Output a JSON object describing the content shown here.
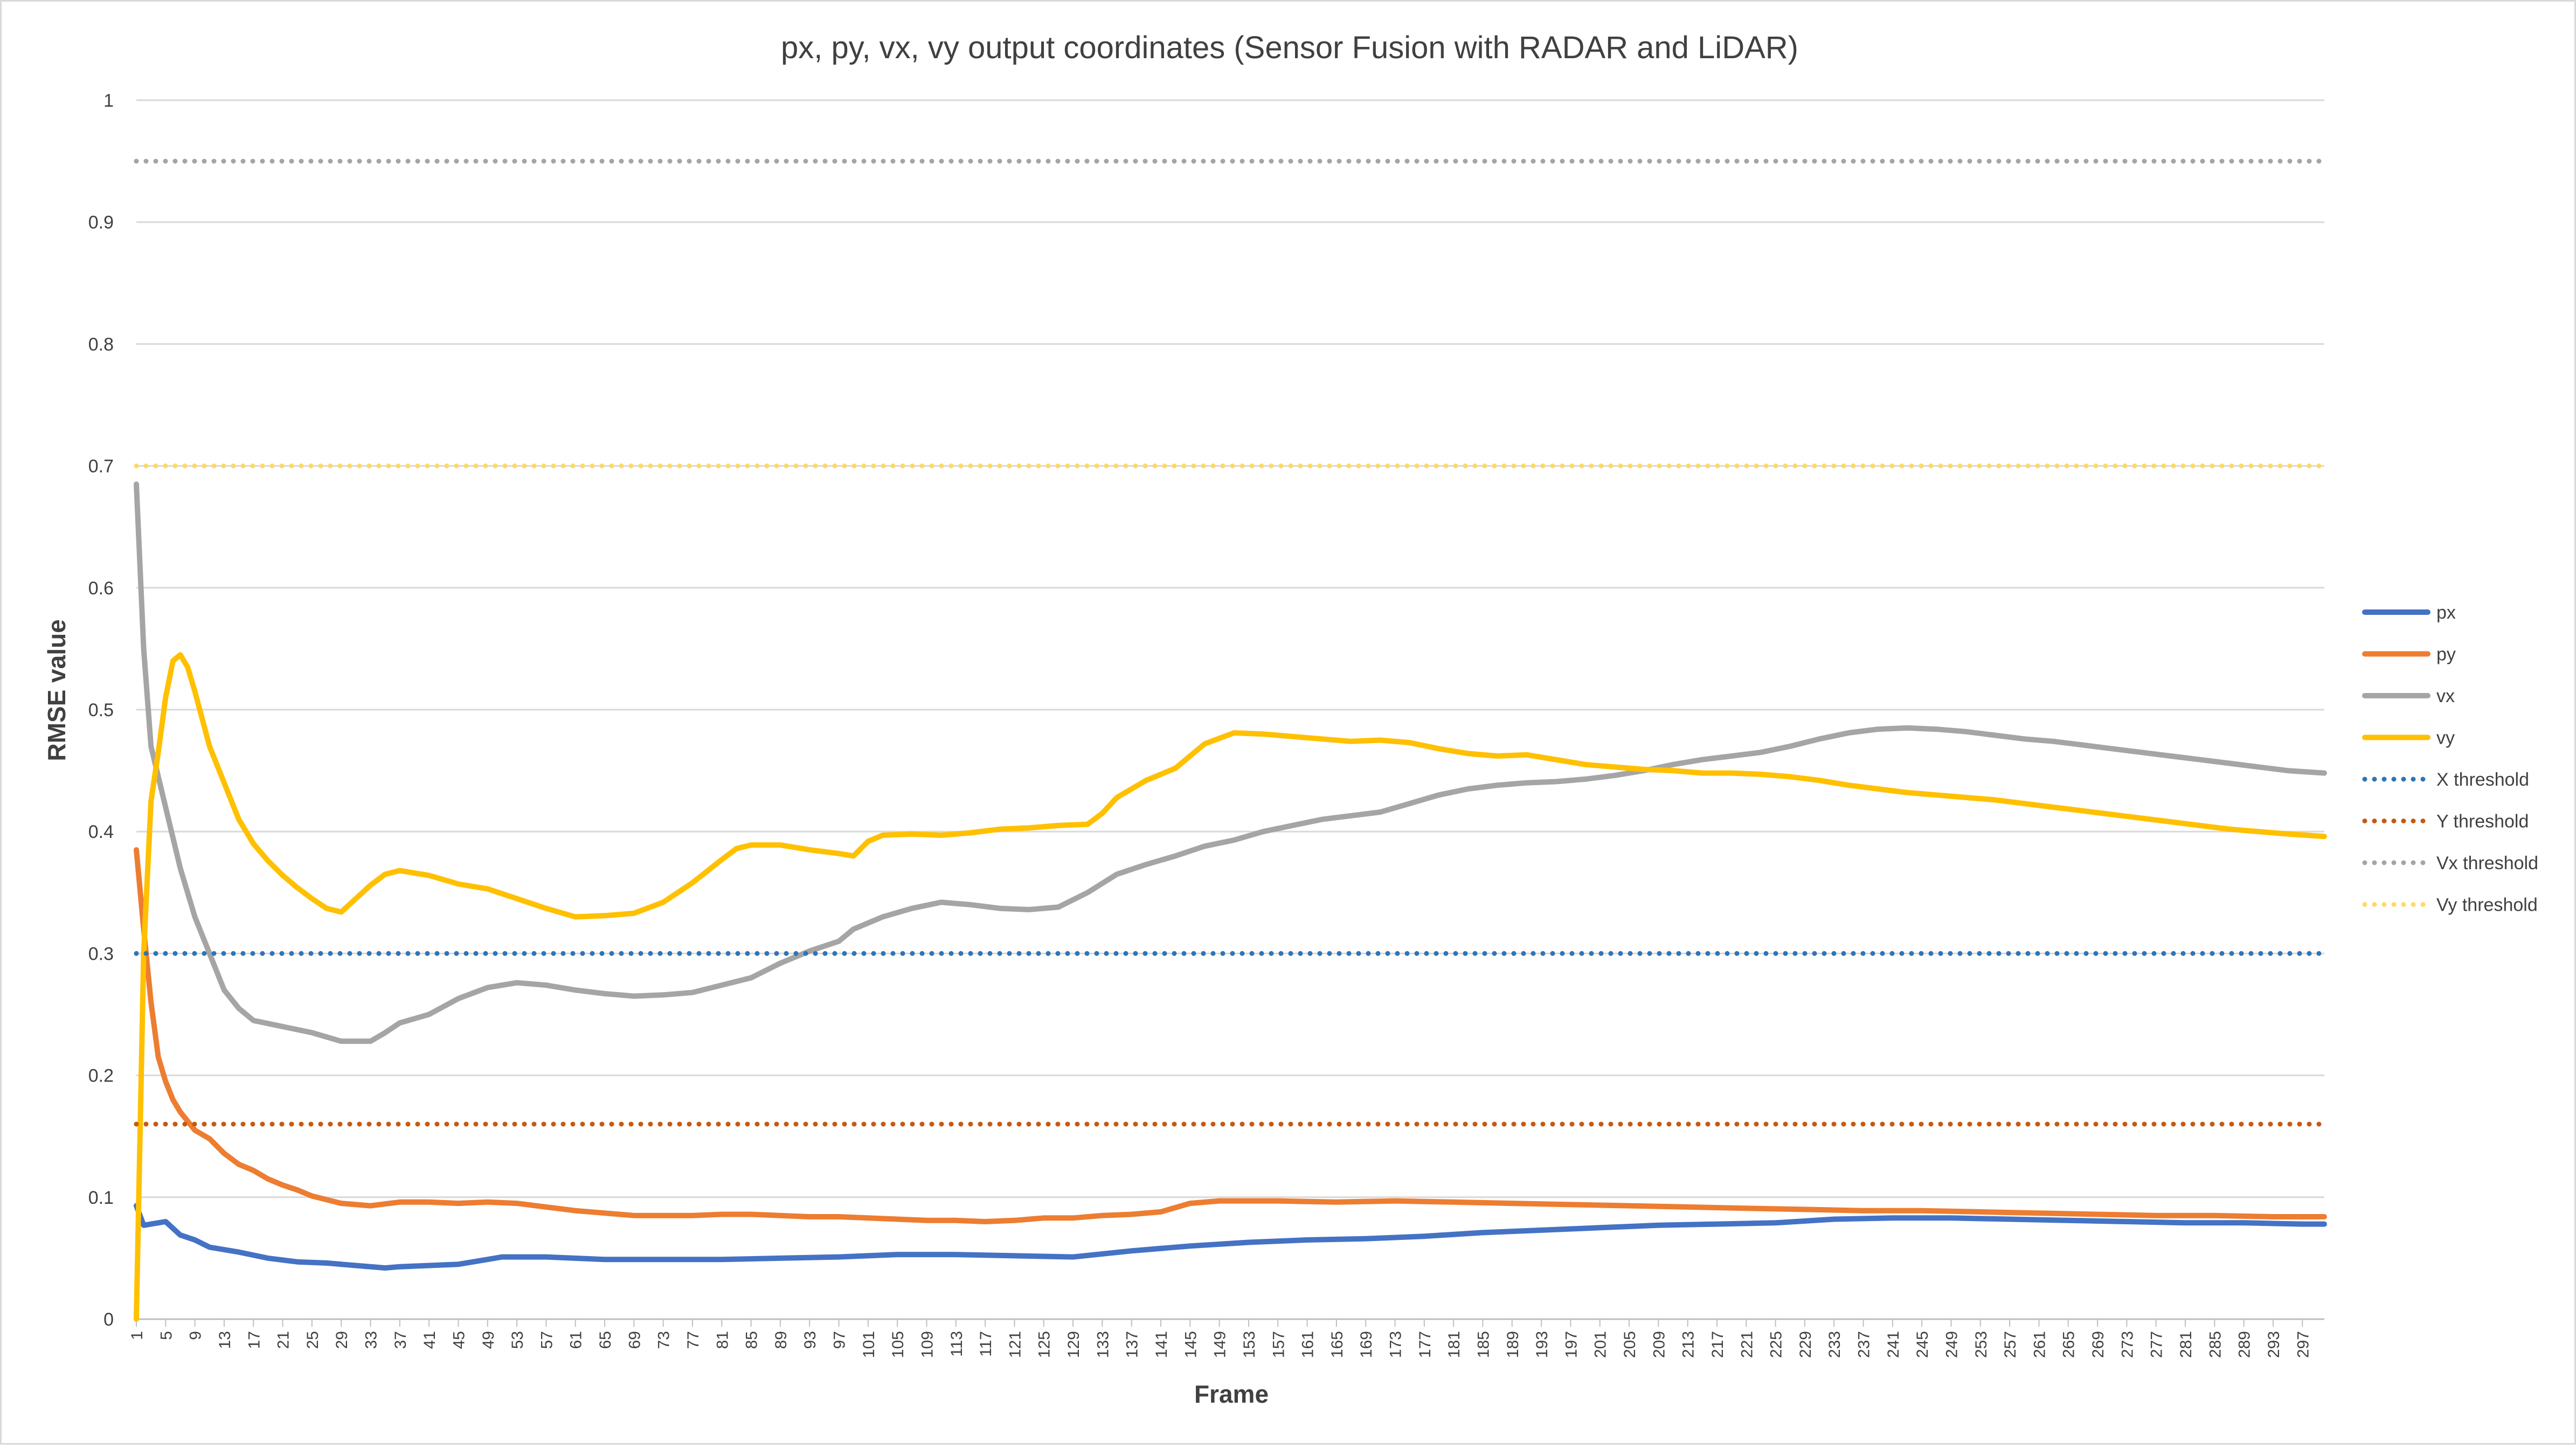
{
  "chart_data": {
    "type": "line",
    "title": "px, py, vx, vy output coordinates (Sensor Fusion with RADAR and LiDAR)",
    "xlabel": "Frame",
    "ylabel": "RMSE value",
    "xlim": [
      1,
      300
    ],
    "ylim": [
      0,
      1
    ],
    "y_ticks": [
      "0",
      "0.1",
      "0.2",
      "0.3",
      "0.4",
      "0.5",
      "0.6",
      "0.7",
      "0.8",
      "0.9",
      "1"
    ],
    "x_tick_start": 1,
    "x_tick_step": 4,
    "x_tick_end": 297,
    "grid": "horizontal",
    "legend_position": "right",
    "series": [
      {
        "name": "px",
        "color": "#4472C4",
        "style": "solid",
        "points": [
          [
            1,
            0.093
          ],
          [
            2,
            0.077
          ],
          [
            5,
            0.08
          ],
          [
            7,
            0.069
          ],
          [
            9,
            0.065
          ],
          [
            11,
            0.059
          ],
          [
            15,
            0.055
          ],
          [
            19,
            0.05
          ],
          [
            23,
            0.047
          ],
          [
            27,
            0.046
          ],
          [
            31,
            0.044
          ],
          [
            35,
            0.042
          ],
          [
            37,
            0.043
          ],
          [
            41,
            0.044
          ],
          [
            45,
            0.045
          ],
          [
            49,
            0.049
          ],
          [
            51,
            0.051
          ],
          [
            57,
            0.051
          ],
          [
            65,
            0.049
          ],
          [
            73,
            0.049
          ],
          [
            81,
            0.049
          ],
          [
            89,
            0.05
          ],
          [
            97,
            0.051
          ],
          [
            105,
            0.053
          ],
          [
            113,
            0.053
          ],
          [
            121,
            0.052
          ],
          [
            129,
            0.051
          ],
          [
            137,
            0.056
          ],
          [
            145,
            0.06
          ],
          [
            153,
            0.063
          ],
          [
            161,
            0.065
          ],
          [
            169,
            0.066
          ],
          [
            177,
            0.068
          ],
          [
            185,
            0.071
          ],
          [
            193,
            0.073
          ],
          [
            201,
            0.075
          ],
          [
            209,
            0.077
          ],
          [
            217,
            0.078
          ],
          [
            225,
            0.079
          ],
          [
            233,
            0.082
          ],
          [
            241,
            0.083
          ],
          [
            249,
            0.083
          ],
          [
            257,
            0.082
          ],
          [
            265,
            0.081
          ],
          [
            273,
            0.08
          ],
          [
            281,
            0.079
          ],
          [
            289,
            0.079
          ],
          [
            297,
            0.078
          ],
          [
            300,
            0.078
          ]
        ]
      },
      {
        "name": "py",
        "color": "#ED7D31",
        "style": "solid",
        "points": [
          [
            1,
            0.385
          ],
          [
            2,
            0.32
          ],
          [
            3,
            0.26
          ],
          [
            4,
            0.215
          ],
          [
            5,
            0.195
          ],
          [
            6,
            0.18
          ],
          [
            7,
            0.17
          ],
          [
            9,
            0.155
          ],
          [
            11,
            0.148
          ],
          [
            13,
            0.136
          ],
          [
            15,
            0.127
          ],
          [
            17,
            0.122
          ],
          [
            19,
            0.115
          ],
          [
            21,
            0.11
          ],
          [
            23,
            0.106
          ],
          [
            25,
            0.101
          ],
          [
            27,
            0.098
          ],
          [
            29,
            0.095
          ],
          [
            31,
            0.094
          ],
          [
            33,
            0.093
          ],
          [
            37,
            0.096
          ],
          [
            41,
            0.096
          ],
          [
            45,
            0.095
          ],
          [
            49,
            0.096
          ],
          [
            53,
            0.095
          ],
          [
            57,
            0.092
          ],
          [
            61,
            0.089
          ],
          [
            65,
            0.087
          ],
          [
            69,
            0.085
          ],
          [
            73,
            0.085
          ],
          [
            77,
            0.085
          ],
          [
            81,
            0.086
          ],
          [
            85,
            0.086
          ],
          [
            89,
            0.085
          ],
          [
            93,
            0.084
          ],
          [
            97,
            0.084
          ],
          [
            101,
            0.083
          ],
          [
            105,
            0.082
          ],
          [
            109,
            0.081
          ],
          [
            113,
            0.081
          ],
          [
            117,
            0.08
          ],
          [
            121,
            0.081
          ],
          [
            125,
            0.083
          ],
          [
            129,
            0.083
          ],
          [
            133,
            0.085
          ],
          [
            137,
            0.086
          ],
          [
            141,
            0.088
          ],
          [
            145,
            0.095
          ],
          [
            149,
            0.097
          ],
          [
            157,
            0.097
          ],
          [
            165,
            0.096
          ],
          [
            173,
            0.097
          ],
          [
            181,
            0.096
          ],
          [
            189,
            0.095
          ],
          [
            197,
            0.094
          ],
          [
            205,
            0.093
          ],
          [
            213,
            0.092
          ],
          [
            221,
            0.091
          ],
          [
            229,
            0.09
          ],
          [
            237,
            0.089
          ],
          [
            245,
            0.089
          ],
          [
            253,
            0.088
          ],
          [
            261,
            0.087
          ],
          [
            269,
            0.086
          ],
          [
            277,
            0.085
          ],
          [
            285,
            0.085
          ],
          [
            293,
            0.084
          ],
          [
            300,
            0.084
          ]
        ]
      },
      {
        "name": "vx",
        "color": "#A5A5A5",
        "style": "solid",
        "points": [
          [
            1,
            0.685
          ],
          [
            2,
            0.55
          ],
          [
            3,
            0.47
          ],
          [
            5,
            0.42
          ],
          [
            7,
            0.37
          ],
          [
            9,
            0.33
          ],
          [
            11,
            0.3
          ],
          [
            13,
            0.27
          ],
          [
            15,
            0.255
          ],
          [
            17,
            0.245
          ],
          [
            21,
            0.24
          ],
          [
            25,
            0.235
          ],
          [
            29,
            0.228
          ],
          [
            33,
            0.228
          ],
          [
            35,
            0.235
          ],
          [
            37,
            0.243
          ],
          [
            41,
            0.25
          ],
          [
            45,
            0.263
          ],
          [
            49,
            0.272
          ],
          [
            53,
            0.276
          ],
          [
            57,
            0.274
          ],
          [
            61,
            0.27
          ],
          [
            65,
            0.267
          ],
          [
            69,
            0.265
          ],
          [
            73,
            0.266
          ],
          [
            77,
            0.268
          ],
          [
            81,
            0.274
          ],
          [
            85,
            0.28
          ],
          [
            89,
            0.292
          ],
          [
            93,
            0.302
          ],
          [
            97,
            0.31
          ],
          [
            99,
            0.32
          ],
          [
            103,
            0.33
          ],
          [
            107,
            0.337
          ],
          [
            111,
            0.342
          ],
          [
            115,
            0.34
          ],
          [
            119,
            0.337
          ],
          [
            123,
            0.336
          ],
          [
            127,
            0.338
          ],
          [
            131,
            0.35
          ],
          [
            135,
            0.365
          ],
          [
            139,
            0.373
          ],
          [
            143,
            0.38
          ],
          [
            147,
            0.388
          ],
          [
            151,
            0.393
          ],
          [
            155,
            0.4
          ],
          [
            159,
            0.405
          ],
          [
            163,
            0.41
          ],
          [
            167,
            0.413
          ],
          [
            171,
            0.416
          ],
          [
            175,
            0.423
          ],
          [
            179,
            0.43
          ],
          [
            183,
            0.435
          ],
          [
            187,
            0.438
          ],
          [
            191,
            0.44
          ],
          [
            195,
            0.441
          ],
          [
            199,
            0.443
          ],
          [
            203,
            0.446
          ],
          [
            207,
            0.45
          ],
          [
            211,
            0.455
          ],
          [
            215,
            0.459
          ],
          [
            219,
            0.462
          ],
          [
            223,
            0.465
          ],
          [
            227,
            0.47
          ],
          [
            231,
            0.476
          ],
          [
            235,
            0.481
          ],
          [
            239,
            0.484
          ],
          [
            243,
            0.485
          ],
          [
            247,
            0.484
          ],
          [
            251,
            0.482
          ],
          [
            255,
            0.479
          ],
          [
            259,
            0.476
          ],
          [
            263,
            0.474
          ],
          [
            267,
            0.471
          ],
          [
            271,
            0.468
          ],
          [
            275,
            0.465
          ],
          [
            279,
            0.462
          ],
          [
            283,
            0.459
          ],
          [
            287,
            0.456
          ],
          [
            291,
            0.453
          ],
          [
            295,
            0.45
          ],
          [
            300,
            0.448
          ]
        ]
      },
      {
        "name": "vy",
        "color": "#FFC000",
        "style": "solid",
        "points": [
          [
            1,
            0.0
          ],
          [
            2,
            0.3
          ],
          [
            3,
            0.425
          ],
          [
            4,
            0.465
          ],
          [
            5,
            0.51
          ],
          [
            6,
            0.54
          ],
          [
            7,
            0.545
          ],
          [
            8,
            0.535
          ],
          [
            9,
            0.515
          ],
          [
            11,
            0.47
          ],
          [
            13,
            0.44
          ],
          [
            15,
            0.41
          ],
          [
            17,
            0.39
          ],
          [
            19,
            0.376
          ],
          [
            21,
            0.364
          ],
          [
            23,
            0.354
          ],
          [
            25,
            0.345
          ],
          [
            27,
            0.337
          ],
          [
            29,
            0.334
          ],
          [
            31,
            0.345
          ],
          [
            33,
            0.356
          ],
          [
            35,
            0.365
          ],
          [
            37,
            0.368
          ],
          [
            41,
            0.364
          ],
          [
            45,
            0.357
          ],
          [
            49,
            0.353
          ],
          [
            53,
            0.345
          ],
          [
            57,
            0.337
          ],
          [
            61,
            0.33
          ],
          [
            65,
            0.331
          ],
          [
            69,
            0.333
          ],
          [
            73,
            0.342
          ],
          [
            77,
            0.358
          ],
          [
            81,
            0.377
          ],
          [
            83,
            0.386
          ],
          [
            85,
            0.389
          ],
          [
            89,
            0.389
          ],
          [
            93,
            0.385
          ],
          [
            97,
            0.382
          ],
          [
            99,
            0.38
          ],
          [
            101,
            0.392
          ],
          [
            103,
            0.397
          ],
          [
            107,
            0.398
          ],
          [
            111,
            0.397
          ],
          [
            115,
            0.399
          ],
          [
            119,
            0.402
          ],
          [
            123,
            0.403
          ],
          [
            127,
            0.405
          ],
          [
            131,
            0.406
          ],
          [
            133,
            0.415
          ],
          [
            135,
            0.428
          ],
          [
            139,
            0.442
          ],
          [
            143,
            0.452
          ],
          [
            147,
            0.472
          ],
          [
            151,
            0.481
          ],
          [
            155,
            0.48
          ],
          [
            159,
            0.478
          ],
          [
            163,
            0.476
          ],
          [
            167,
            0.474
          ],
          [
            171,
            0.475
          ],
          [
            175,
            0.473
          ],
          [
            179,
            0.468
          ],
          [
            183,
            0.464
          ],
          [
            187,
            0.462
          ],
          [
            191,
            0.463
          ],
          [
            195,
            0.459
          ],
          [
            199,
            0.455
          ],
          [
            203,
            0.453
          ],
          [
            207,
            0.451
          ],
          [
            211,
            0.45
          ],
          [
            215,
            0.448
          ],
          [
            219,
            0.448
          ],
          [
            223,
            0.447
          ],
          [
            227,
            0.445
          ],
          [
            231,
            0.442
          ],
          [
            235,
            0.438
          ],
          [
            239,
            0.435
          ],
          [
            243,
            0.432
          ],
          [
            247,
            0.43
          ],
          [
            251,
            0.428
          ],
          [
            255,
            0.426
          ],
          [
            259,
            0.423
          ],
          [
            263,
            0.42
          ],
          [
            267,
            0.417
          ],
          [
            271,
            0.414
          ],
          [
            275,
            0.411
          ],
          [
            279,
            0.408
          ],
          [
            283,
            0.405
          ],
          [
            287,
            0.402
          ],
          [
            291,
            0.4
          ],
          [
            295,
            0.398
          ],
          [
            300,
            0.396
          ]
        ]
      },
      {
        "name": "X threshold",
        "color": "#2E75B6",
        "style": "dotted",
        "points": [
          [
            1,
            0.3
          ],
          [
            300,
            0.3
          ]
        ]
      },
      {
        "name": "Y threshold",
        "color": "#C55A11",
        "style": "dotted",
        "points": [
          [
            1,
            0.16
          ],
          [
            300,
            0.16
          ]
        ]
      },
      {
        "name": "Vx threshold",
        "color": "#A5A5A5",
        "style": "dotted",
        "points": [
          [
            1,
            0.95
          ],
          [
            300,
            0.95
          ]
        ]
      },
      {
        "name": "Vy threshold",
        "color": "#FFD966",
        "style": "dotted",
        "points": [
          [
            1,
            0.7
          ],
          [
            300,
            0.7
          ]
        ]
      }
    ]
  }
}
